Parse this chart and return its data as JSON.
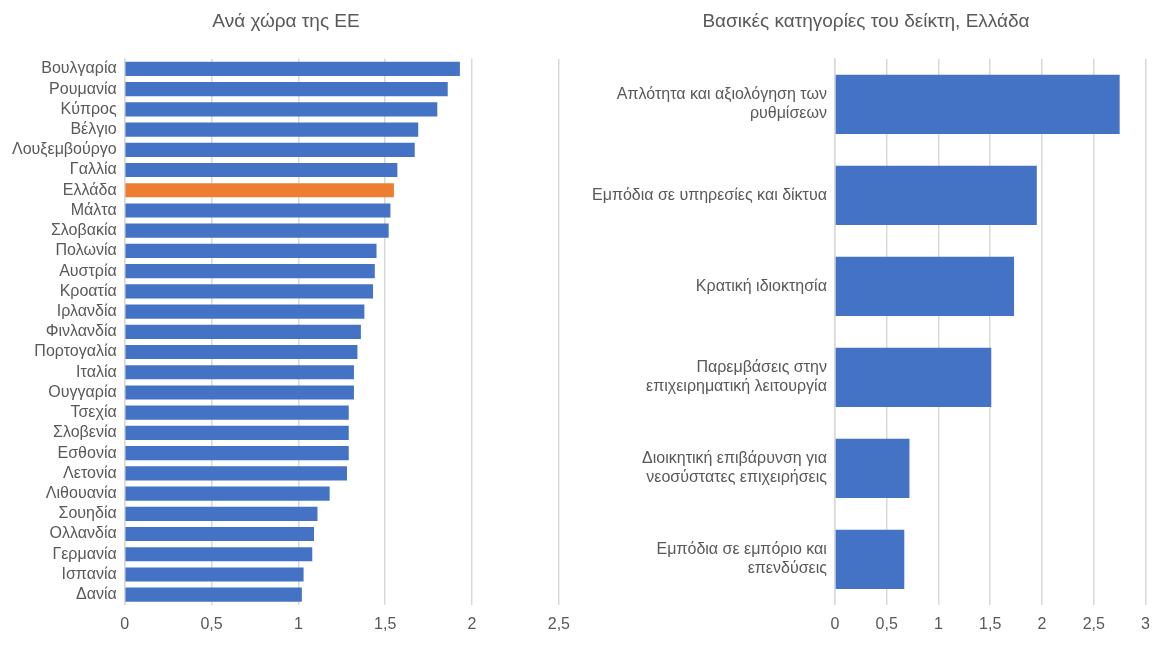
{
  "chart_data": [
    {
      "type": "bar",
      "orientation": "horizontal",
      "title": "Ανά χώρα της ΕΕ",
      "categories": [
        "Βουλγαρία",
        "Ρουμανία",
        "Κύπρος",
        "Βέλγιο",
        "Λουξεμβούργο",
        "Γαλλία",
        "Ελλάδα",
        "Μάλτα",
        "Σλοβακία",
        "Πολωνία",
        "Αυστρία",
        "Κροατία",
        "Ιρλανδία",
        "Φινλανδία",
        "Πορτογαλία",
        "Ιταλία",
        "Ουγγαρία",
        "Τσεχία",
        "Σλοβενία",
        "Εσθονία",
        "Λετονία",
        "Λιθουανία",
        "Σουηδία",
        "Ολλανδία",
        "Γερμανία",
        "Ισπανία",
        "Δανία"
      ],
      "values": [
        1.93,
        1.86,
        1.8,
        1.69,
        1.67,
        1.57,
        1.55,
        1.53,
        1.52,
        1.45,
        1.44,
        1.43,
        1.38,
        1.36,
        1.34,
        1.32,
        1.32,
        1.29,
        1.29,
        1.29,
        1.28,
        1.18,
        1.11,
        1.09,
        1.08,
        1.03,
        1.02
      ],
      "colors": [
        "#4472c4",
        "#4472c4",
        "#4472c4",
        "#4472c4",
        "#4472c4",
        "#4472c4",
        "#ed7d31",
        "#4472c4",
        "#4472c4",
        "#4472c4",
        "#4472c4",
        "#4472c4",
        "#4472c4",
        "#4472c4",
        "#4472c4",
        "#4472c4",
        "#4472c4",
        "#4472c4",
        "#4472c4",
        "#4472c4",
        "#4472c4",
        "#4472c4",
        "#4472c4",
        "#4472c4",
        "#4472c4",
        "#4472c4",
        "#4472c4"
      ],
      "xlim": [
        0,
        2.5
      ],
      "xticks": [
        0,
        {
          "value": 0.5,
          "label": "0,5"
        },
        1,
        {
          "value": 1.5,
          "label": "1,5"
        },
        2,
        {
          "value": 2.5,
          "label": "2,5"
        }
      ],
      "grid": "x",
      "legend": false
    },
    {
      "type": "bar",
      "orientation": "horizontal",
      "title": "Βασικές κατηγορίες του δείκτη, Ελλάδα",
      "categories": [
        "Απλότητα και αξιολόγηση των ρυθμίσεων",
        "Εμπόδια σε υπηρεσίες και δίκτυα",
        "Κρατική ιδιοκτησία",
        "Παρεμβάσεις στην επιχειρηματική λειτουργία",
        "Διοικητική επιβάρυνση για νεοσύστατες επιχειρήσεις",
        "Εμπόδια σε εμπόριο και επενδύσεις"
      ],
      "values": [
        2.75,
        1.95,
        1.73,
        1.51,
        0.72,
        0.67
      ],
      "color": "#4472c4",
      "xlim": [
        0,
        3
      ],
      "xticks": [
        0,
        {
          "value": 0.5,
          "label": "0,5"
        },
        1,
        {
          "value": 1.5,
          "label": "1,5"
        },
        2,
        {
          "value": 2.5,
          "label": "2,5"
        },
        3
      ],
      "grid": "x",
      "legend": false
    }
  ]
}
